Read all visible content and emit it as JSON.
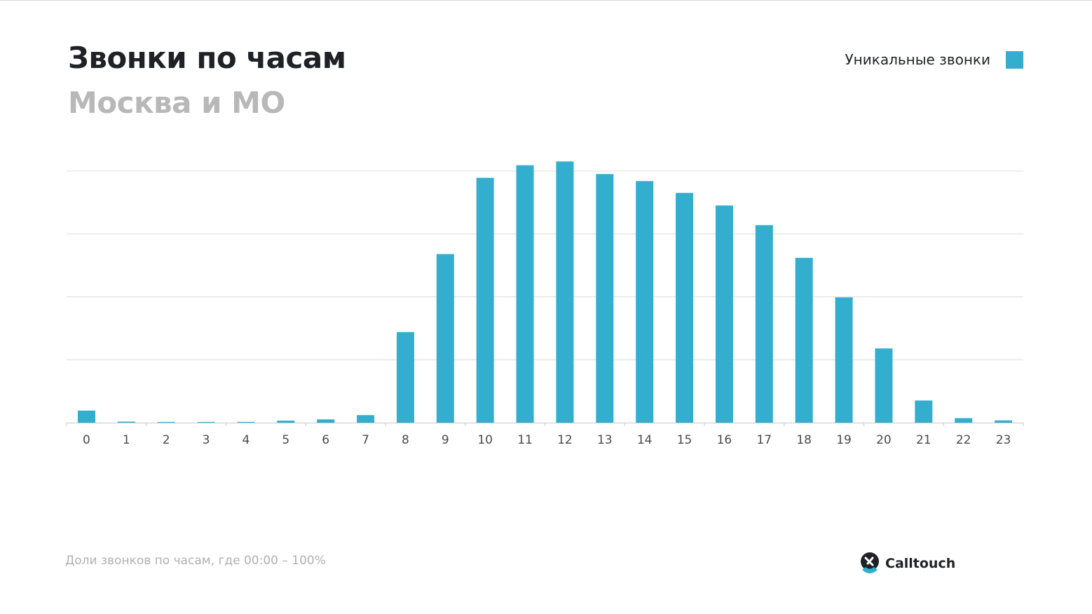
{
  "header": {
    "title": "Звонки по часам",
    "subtitle": "Москва и МО"
  },
  "footer": {
    "note": "Доли звонков по часам, где 00:00 – 100%",
    "logo_text": "Calltouch",
    "logo_icon": "calltouch-logo-icon"
  },
  "colors": {
    "bar": "#33aecf",
    "grid": "#dcdcdc",
    "axis": "#c8c8c8",
    "logo_dark": "#1e2226",
    "logo_accent": "#33aecf"
  },
  "chart_data": {
    "type": "bar",
    "legend": {
      "label": "Уникальные звонки",
      "position": "top-right"
    },
    "grid": true,
    "ylim": [
      0,
      100
    ],
    "categories": [
      "0",
      "1",
      "2",
      "3",
      "4",
      "5",
      "6",
      "7",
      "8",
      "9",
      "10",
      "11",
      "12",
      "13",
      "14",
      "15",
      "16",
      "17",
      "18",
      "19",
      "20",
      "21",
      "22",
      "23"
    ],
    "series": [
      {
        "name": "Уникальные звонки",
        "values": [
          4.8,
          0.4,
          0.2,
          0.2,
          0.3,
          0.8,
          1.3,
          3.0,
          36.0,
          67.0,
          97.3,
          102.3,
          103.8,
          98.8,
          96.0,
          91.3,
          86.3,
          78.5,
          65.5,
          49.8,
          29.5,
          8.8,
          1.8,
          0.9
        ]
      }
    ]
  }
}
